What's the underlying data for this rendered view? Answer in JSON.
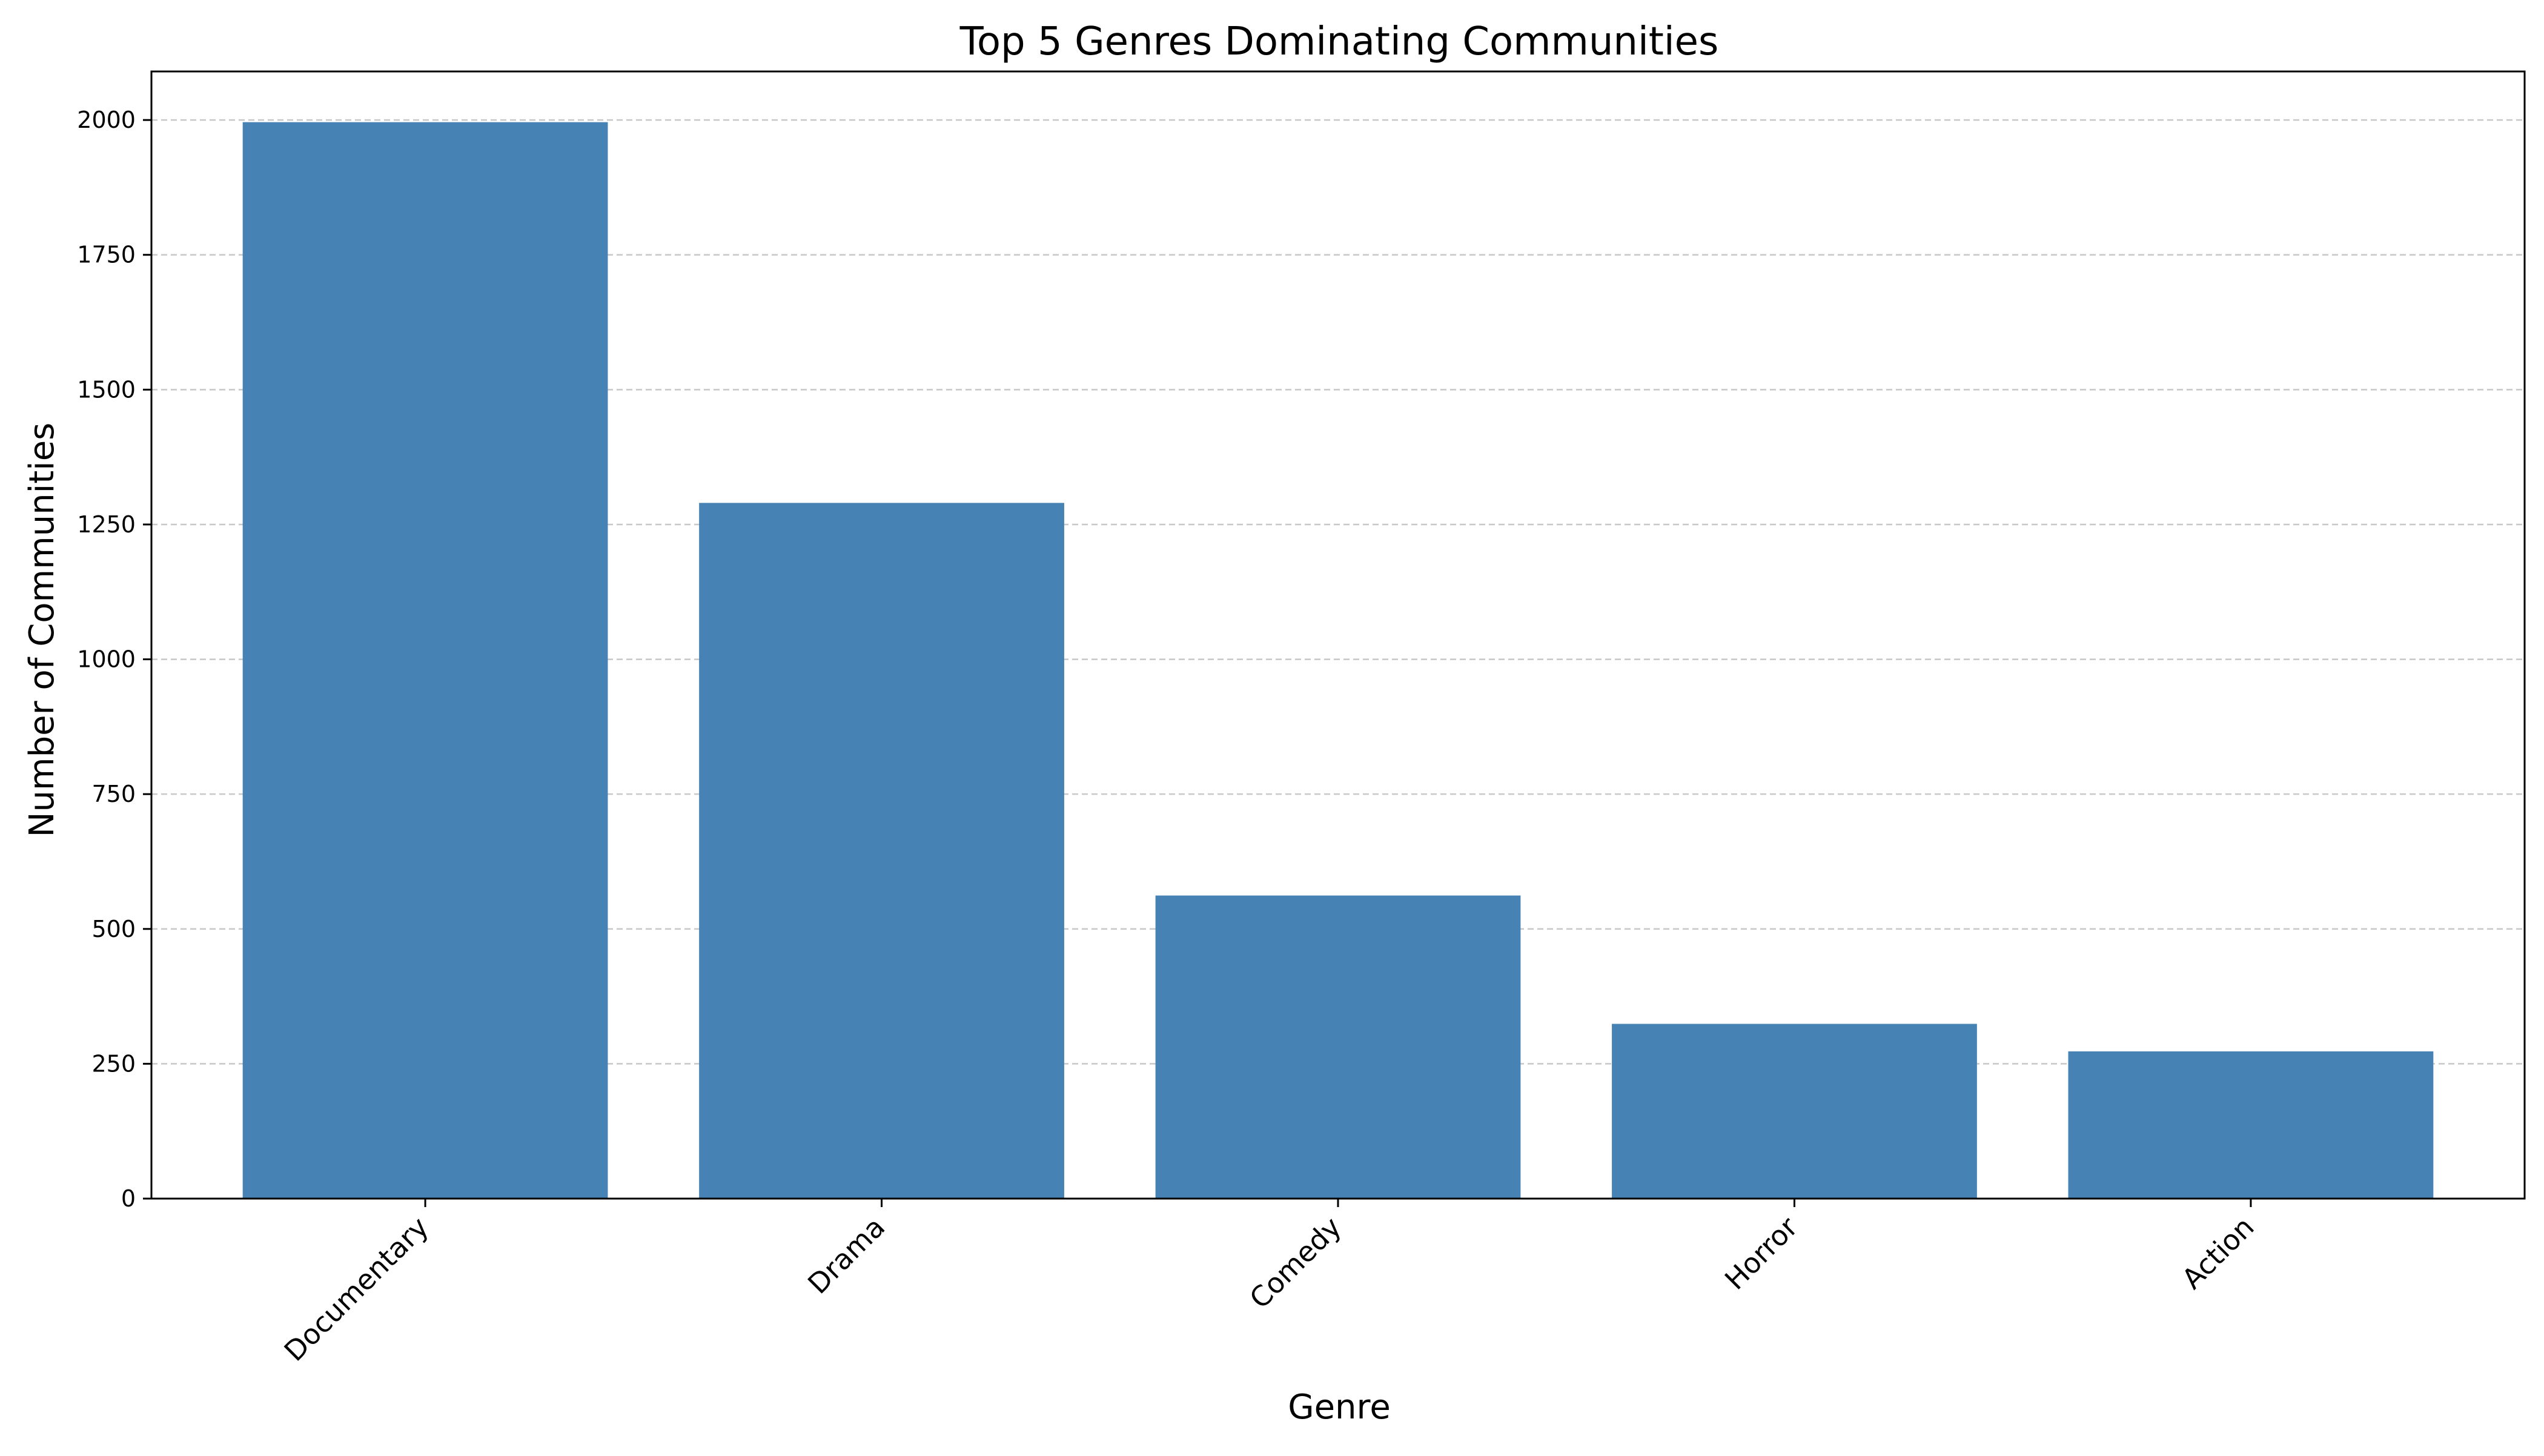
{
  "chart_data": {
    "type": "bar",
    "title": "Top 5 Genres Dominating Communities",
    "xlabel": "Genre",
    "ylabel": "Number of Communities",
    "categories": [
      "Documentary",
      "Drama",
      "Comedy",
      "Horror",
      "Action"
    ],
    "values": [
      1996,
      1290,
      562,
      324,
      273
    ],
    "ylim": [
      0,
      2090
    ],
    "yticks": [
      0,
      250,
      500,
      750,
      1000,
      1250,
      1500,
      1750,
      2000
    ],
    "grid": "y-dashed",
    "bar_color": "#4682b4",
    "grid_color": "#c8c8c8"
  }
}
